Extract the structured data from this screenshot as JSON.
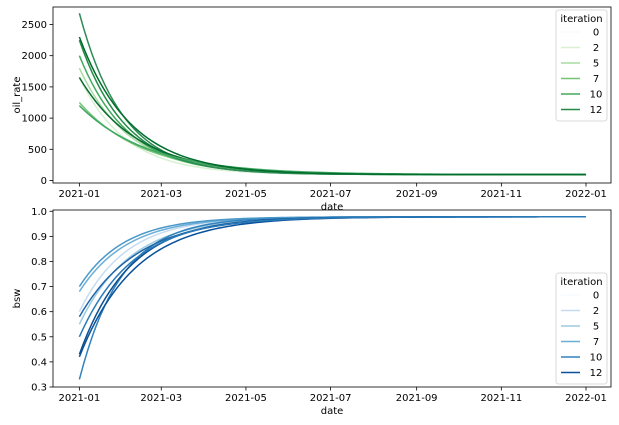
{
  "chart_data": [
    {
      "type": "line",
      "xlabel": "date",
      "ylabel": "oil_rate",
      "ylim": [
        -40,
        2780
      ],
      "xlim": [
        "2020-12-13",
        "2022-01-19"
      ],
      "x_ticks": [
        "2021-01",
        "2021-03",
        "2021-05",
        "2021-07",
        "2021-09",
        "2021-11",
        "2022-01"
      ],
      "y_ticks": [
        0,
        500,
        1000,
        1500,
        2000,
        2500
      ],
      "grid": false,
      "legend": {
        "title": "iteration",
        "placement": "top-right",
        "entries": [
          "0",
          "2",
          "5",
          "7",
          "10",
          "12"
        ]
      },
      "palette": [
        "#f7fcf5",
        "#d9f0d3",
        "#a9dca3",
        "#74c476",
        "#41ab5d",
        "#238b45",
        "#0a6b30"
      ],
      "x_range": [
        "2021-01-01",
        "2022-01-01"
      ],
      "series": [
        {
          "name": "0",
          "start": 1700,
          "end": 95,
          "rate": 0.031,
          "color": "#f7fcf5"
        },
        {
          "name": "2",
          "start": 1650,
          "end": 95,
          "rate": 0.03,
          "color": "#d9f0d3"
        },
        {
          "name": "5",
          "start": 1800,
          "end": 95,
          "rate": 0.028,
          "color": "#a9dca3"
        },
        {
          "name": "7",
          "start": 1250,
          "end": 95,
          "rate": 0.022,
          "color": "#74c476"
        },
        {
          "name": "10",
          "start": 2000,
          "end": 95,
          "rate": 0.029,
          "color": "#41ab5d"
        },
        {
          "name": "12",
          "start": 2250,
          "end": 95,
          "rate": 0.03,
          "color": "#238b45"
        },
        {
          "start": 2680,
          "end": 95,
          "rate": 0.032,
          "color": "#2e8b57"
        },
        {
          "start": 1650,
          "end": 95,
          "rate": 0.024,
          "color": "#0a6b30"
        },
        {
          "start": 1200,
          "end": 95,
          "rate": 0.02,
          "color": "#3fa862"
        },
        {
          "start": 2300,
          "end": 95,
          "rate": 0.027,
          "color": "#006d2c"
        }
      ]
    },
    {
      "type": "line",
      "xlabel": "date",
      "ylabel": "bsw",
      "ylim": [
        0.3,
        1.005
      ],
      "xlim": [
        "2020-12-13",
        "2022-01-19"
      ],
      "x_ticks": [
        "2021-01",
        "2021-03",
        "2021-05",
        "2021-07",
        "2021-09",
        "2021-11",
        "2022-01"
      ],
      "y_ticks": [
        0.3,
        0.4,
        0.5,
        0.6,
        0.7,
        0.8,
        0.9,
        1.0
      ],
      "grid": false,
      "legend": {
        "title": "iteration",
        "placement": "lower-right",
        "entries": [
          "0",
          "2",
          "5",
          "7",
          "10",
          "12"
        ]
      },
      "palette": [
        "#f7fbff",
        "#c6dbef",
        "#9ecae1",
        "#6baed6",
        "#3182bd",
        "#08519c"
      ],
      "x_range": [
        "2021-01-01",
        "2022-01-01"
      ],
      "series": [
        {
          "name": "0",
          "start": 0.55,
          "end": 0.978,
          "rate": 0.03,
          "color": "#f7fbff"
        },
        {
          "name": "2",
          "start": 0.6,
          "end": 0.978,
          "rate": 0.03,
          "color": "#c6dbef"
        },
        {
          "name": "5",
          "start": 0.55,
          "end": 0.978,
          "rate": 0.027,
          "color": "#9ecae1"
        },
        {
          "name": "7",
          "start": 0.68,
          "end": 0.978,
          "rate": 0.029,
          "color": "#6baed6"
        },
        {
          "name": "10",
          "start": 0.33,
          "end": 0.978,
          "rate": 0.033,
          "color": "#3182bd"
        },
        {
          "name": "12",
          "start": 0.42,
          "end": 0.978,
          "rate": 0.025,
          "color": "#08519c"
        },
        {
          "start": 0.7,
          "end": 0.978,
          "rate": 0.031,
          "color": "#4a98c9"
        },
        {
          "start": 0.58,
          "end": 0.978,
          "rate": 0.024,
          "color": "#1f66a8"
        },
        {
          "start": 0.43,
          "end": 0.978,
          "rate": 0.028,
          "color": "#0b4f8f"
        },
        {
          "start": 0.5,
          "end": 0.978,
          "rate": 0.026,
          "color": "#2a7ab8"
        }
      ]
    }
  ]
}
